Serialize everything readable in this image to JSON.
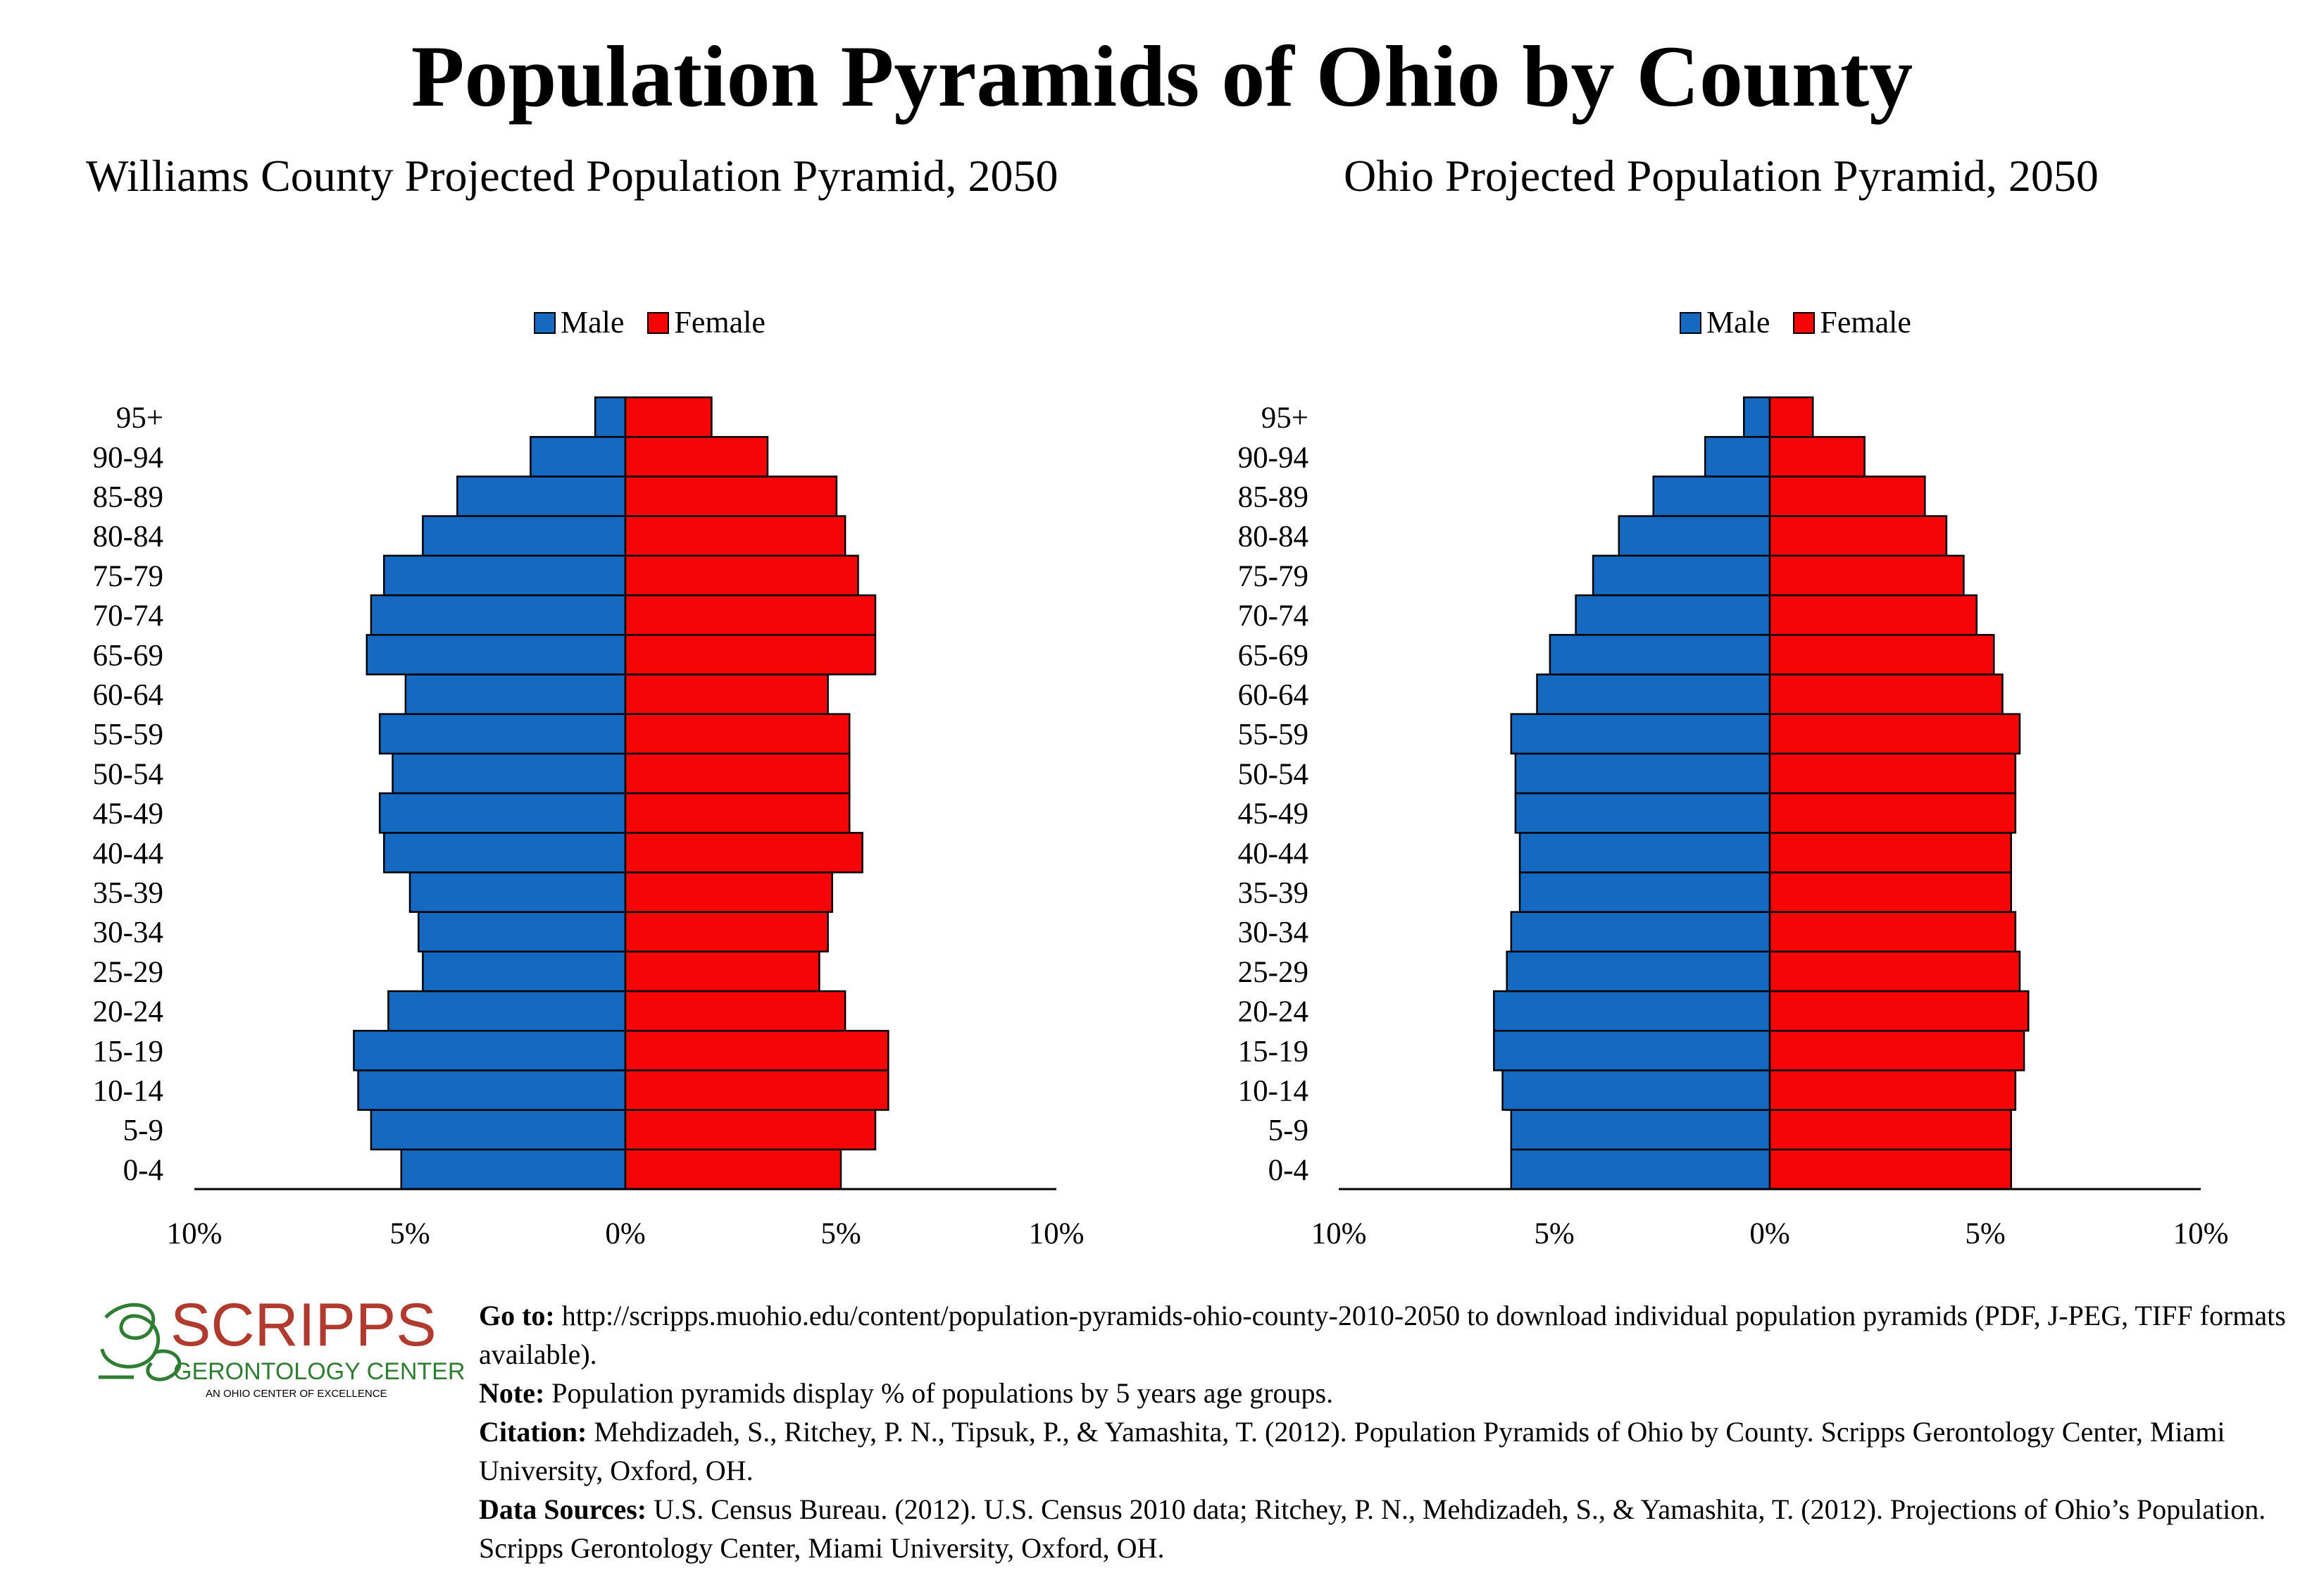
{
  "title": "Population Pyramids of Ohio by County",
  "colors": {
    "male": "#1569c0",
    "female": "#f50505",
    "logo_red": "#b03a2e",
    "logo_green": "#2e7d32"
  },
  "legend": {
    "male": "Male",
    "female": "Female"
  },
  "age_groups": [
    "0-4",
    "5-9",
    "10-14",
    "15-19",
    "20-24",
    "25-29",
    "30-34",
    "35-39",
    "40-44",
    "45-49",
    "50-54",
    "55-59",
    "60-64",
    "65-69",
    "70-74",
    "75-79",
    "80-84",
    "85-89",
    "90-94",
    "95+"
  ],
  "x_tick_labels": [
    "10%",
    "5%",
    "0%",
    "5%",
    "10%"
  ],
  "chart_data": [
    {
      "type": "bar",
      "orientation": "horizontal-pyramid",
      "title": "Williams County Projected Population Pyramid, 2050",
      "categories": [
        "0-4",
        "5-9",
        "10-14",
        "15-19",
        "20-24",
        "25-29",
        "30-34",
        "35-39",
        "40-44",
        "45-49",
        "50-54",
        "55-59",
        "60-64",
        "65-69",
        "70-74",
        "75-79",
        "80-84",
        "85-89",
        "90-94",
        "95+"
      ],
      "series": [
        {
          "name": "Male",
          "values": [
            5.2,
            5.9,
            6.2,
            6.3,
            5.5,
            4.7,
            4.8,
            5.0,
            5.6,
            5.7,
            5.4,
            5.7,
            5.1,
            6.0,
            5.9,
            5.6,
            4.7,
            3.9,
            2.2,
            0.7
          ]
        },
        {
          "name": "Female",
          "values": [
            5.0,
            5.8,
            6.1,
            6.1,
            5.1,
            4.5,
            4.7,
            4.8,
            5.5,
            5.2,
            5.2,
            5.2,
            4.7,
            5.8,
            5.8,
            5.4,
            5.1,
            4.9,
            3.3,
            2.0
          ]
        }
      ],
      "xlim": [
        -10,
        10
      ],
      "x_unit": "%",
      "legend_position": "top",
      "grid": false
    },
    {
      "type": "bar",
      "orientation": "horizontal-pyramid",
      "title": "Ohio Projected Population Pyramid, 2050",
      "categories": [
        "0-4",
        "5-9",
        "10-14",
        "15-19",
        "20-24",
        "25-29",
        "30-34",
        "35-39",
        "40-44",
        "45-49",
        "50-54",
        "55-59",
        "60-64",
        "65-69",
        "70-74",
        "75-79",
        "80-84",
        "85-89",
        "90-94",
        "95+"
      ],
      "series": [
        {
          "name": "Male",
          "values": [
            6.0,
            6.0,
            6.2,
            6.4,
            6.4,
            6.1,
            6.0,
            5.8,
            5.8,
            5.9,
            5.9,
            6.0,
            5.4,
            5.1,
            4.5,
            4.1,
            3.5,
            2.7,
            1.5,
            0.6
          ]
        },
        {
          "name": "Female",
          "values": [
            5.6,
            5.6,
            5.7,
            5.9,
            6.0,
            5.8,
            5.7,
            5.6,
            5.6,
            5.7,
            5.7,
            5.8,
            5.4,
            5.2,
            4.8,
            4.5,
            4.1,
            3.6,
            2.2,
            1.0
          ]
        }
      ],
      "xlim": [
        -10,
        10
      ],
      "x_unit": "%",
      "legend_position": "top",
      "grid": false
    }
  ],
  "logo": {
    "name": "SCRIPPS",
    "line2": "GERONTOLOGY CENTER",
    "line3": "AN OHIO CENTER OF EXCELLENCE"
  },
  "notes": {
    "goto_label": "Go to:",
    "goto_text": " http://scripps.muohio.edu/content/population-pyramids-ohio-county-2010-2050 to download individual population pyramids (PDF, J-PEG, TIFF formats available).",
    "note_label": "Note:",
    "note_text": " Population pyramids display % of populations by 5 years age groups.",
    "citation_label": "Citation:",
    "citation_text": " Mehdizadeh, S., Ritchey, P. N., Tipsuk, P., & Yamashita, T. (2012). Population Pyramids of Ohio by County. Scripps Gerontology Center, Miami University, Oxford, OH.",
    "sources_label": "Data Sources:",
    "sources_text": " U.S. Census Bureau. (2012). U.S. Census 2010 data; Ritchey, P. N., Mehdizadeh, S., & Yamashita, T. (2012). Projections of Ohio’s Population. Scripps Gerontology Center, Miami University, Oxford, OH."
  }
}
